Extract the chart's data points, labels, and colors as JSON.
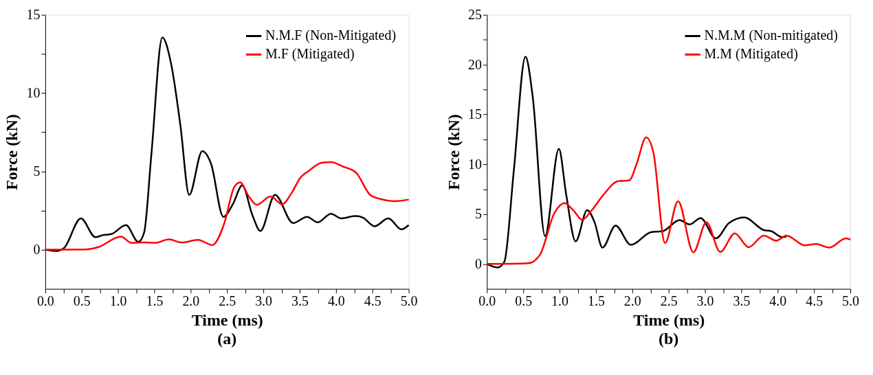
{
  "chart_data": [
    {
      "type": "line",
      "title": "(a)",
      "xlabel": "Time (ms)",
      "ylabel": "Force (kN)",
      "legend": "top right",
      "grid": false,
      "marker": "none",
      "line_style": "solid",
      "xlim": [
        0,
        5
      ],
      "ylim": [
        -2.5,
        15
      ],
      "xticks": [
        {
          "value": 0,
          "label": "0.0"
        },
        {
          "value": 0.25,
          "label": null
        },
        {
          "value": 0.5,
          "label": "0.5"
        },
        {
          "value": 0.75,
          "label": null
        },
        {
          "value": 1,
          "label": "1.0"
        },
        {
          "value": 1.25,
          "label": null
        },
        {
          "value": 1.5,
          "label": "1.5"
        },
        {
          "value": 1.75,
          "label": null
        },
        {
          "value": 2,
          "label": "2.0"
        },
        {
          "value": 2.25,
          "label": null
        },
        {
          "value": 2.5,
          "label": "2.5"
        },
        {
          "value": 2.75,
          "label": null
        },
        {
          "value": 3,
          "label": "3.0"
        },
        {
          "value": 3.25,
          "label": null
        },
        {
          "value": 3.5,
          "label": "3.5"
        },
        {
          "value": 3.75,
          "label": null
        },
        {
          "value": 4,
          "label": "4.0"
        },
        {
          "value": 4.25,
          "label": null
        },
        {
          "value": 4.5,
          "label": "4.5"
        },
        {
          "value": 4.75,
          "label": null
        },
        {
          "value": 5,
          "label": "5.0"
        }
      ],
      "yticks": [
        0,
        {
          "value": 2.5,
          "label": null
        },
        5,
        {
          "value": 7.5,
          "label": null
        },
        10,
        {
          "value": 12.5,
          "label": null
        },
        15
      ],
      "series": [
        {
          "name": "N.M.F (Non-Mitigated)",
          "color": "#000000",
          "x": [
            0,
            0.16,
            0.26,
            0.49,
            0.69,
            0.79,
            0.91,
            1.11,
            1.28,
            1.36,
            1.46,
            1.61,
            1.73,
            1.86,
            1.98,
            2.16,
            2.28,
            2.45,
            2.58,
            2.71,
            2.85,
            2.96,
            3.16,
            3.41,
            3.6,
            3.75,
            3.93,
            4.07,
            4.27,
            4.37,
            4.53,
            4.72,
            4.9,
            5.0
          ],
          "values": [
            0,
            -0.08,
            0.12,
            2.0,
            0.8,
            0.93,
            1.0,
            1.57,
            0.5,
            1.1,
            6.1,
            13.55,
            11.9,
            7.9,
            3.5,
            6.3,
            5.5,
            2.1,
            2.9,
            4.1,
            2.2,
            1.2,
            3.5,
            1.7,
            2.1,
            1.75,
            2.3,
            2.0,
            2.15,
            2.05,
            1.5,
            2.0,
            1.3,
            1.57
          ]
        },
        {
          "name": "M.F (Mitigated)",
          "color": "#ff0000",
          "x": [
            0,
            0.56,
            0.73,
            1.04,
            1.19,
            1.36,
            1.51,
            1.7,
            1.88,
            2.1,
            2.3,
            2.46,
            2.6,
            2.68,
            2.8,
            2.91,
            3.1,
            3.26,
            3.38,
            3.51,
            3.63,
            3.8,
            3.93,
            4.1,
            4.27,
            4.47,
            4.6,
            4.8,
            5.0
          ],
          "values": [
            0,
            0.02,
            0.17,
            0.84,
            0.43,
            0.47,
            0.44,
            0.66,
            0.46,
            0.63,
            0.3,
            1.65,
            4.0,
            4.3,
            3.4,
            2.87,
            3.4,
            2.9,
            3.55,
            4.6,
            5.05,
            5.55,
            5.6,
            5.3,
            4.95,
            3.5,
            3.25,
            3.1,
            3.2
          ]
        }
      ]
    },
    {
      "type": "line",
      "title": "(b)",
      "xlabel": "Time (ms)",
      "ylabel": "Force (kN)",
      "legend": "top right",
      "grid": false,
      "marker": "none",
      "line_style": "solid",
      "xlim": [
        0,
        5
      ],
      "ylim": [
        -2.5,
        25
      ],
      "xticks": [
        {
          "value": 0,
          "label": "0.0"
        },
        {
          "value": 0.25,
          "label": null
        },
        {
          "value": 0.5,
          "label": "0.5"
        },
        {
          "value": 0.75,
          "label": null
        },
        {
          "value": 1,
          "label": "1.0"
        },
        {
          "value": 1.25,
          "label": null
        },
        {
          "value": 1.5,
          "label": "1.5"
        },
        {
          "value": 1.75,
          "label": null
        },
        {
          "value": 2,
          "label": "2.0"
        },
        {
          "value": 2.25,
          "label": null
        },
        {
          "value": 2.5,
          "label": "2.5"
        },
        {
          "value": 2.75,
          "label": null
        },
        {
          "value": 3,
          "label": "3.0"
        },
        {
          "value": 3.25,
          "label": null
        },
        {
          "value": 3.5,
          "label": "3.5"
        },
        {
          "value": 3.75,
          "label": null
        },
        {
          "value": 4,
          "label": "4.0"
        },
        {
          "value": 4.25,
          "label": null
        },
        {
          "value": 4.5,
          "label": "4.5"
        },
        {
          "value": 4.75,
          "label": null
        },
        {
          "value": 5,
          "label": "5.0"
        }
      ],
      "yticks": [
        0,
        {
          "value": 2.5,
          "label": null
        },
        5,
        {
          "value": 7.5,
          "label": null
        },
        10,
        {
          "value": 12.5,
          "label": null
        },
        15,
        {
          "value": 17.5,
          "label": null
        },
        20,
        {
          "value": 22.5,
          "label": null
        },
        25
      ],
      "series": [
        {
          "name": "N.M.M (Non-mitigated)",
          "color": "#000000",
          "x": [
            0,
            0.15,
            0.24,
            0.37,
            0.53,
            0.63,
            0.8,
            0.99,
            1.09,
            1.22,
            1.38,
            1.48,
            1.59,
            1.77,
            1.98,
            2.26,
            2.42,
            2.65,
            2.79,
            2.94,
            3.15,
            3.33,
            3.54,
            3.81,
            3.91,
            4.06,
            4.12
          ],
          "values": [
            0,
            -0.35,
            0.23,
            9.35,
            20.8,
            16.8,
            2.8,
            11.55,
            7.0,
            2.27,
            5.4,
            4.2,
            1.64,
            3.85,
            1.92,
            3.2,
            3.3,
            4.4,
            3.97,
            4.6,
            2.57,
            4.1,
            4.67,
            3.4,
            3.3,
            2.7,
            2.75
          ]
        },
        {
          "name": "M.M (Mitigated)",
          "color": "#ff0000",
          "x": [
            0,
            0.57,
            0.73,
            0.93,
            1.07,
            1.19,
            1.31,
            1.44,
            1.61,
            1.8,
            1.96,
            2.06,
            2.19,
            2.29,
            2.45,
            2.63,
            2.84,
            3.02,
            3.21,
            3.41,
            3.6,
            3.81,
            3.98,
            4.12,
            4.37,
            4.53,
            4.71,
            4.94,
            5.0
          ],
          "values": [
            0,
            0.07,
            0.93,
            5.14,
            6.1,
            5.37,
            4.44,
            5.37,
            7.0,
            8.3,
            8.4,
            10.05,
            12.7,
            11.2,
            2.1,
            6.3,
            1.17,
            4.2,
            1.21,
            3.08,
            1.68,
            2.85,
            2.34,
            2.85,
            1.87,
            2.0,
            1.64,
            2.57,
            2.45
          ]
        }
      ]
    }
  ]
}
